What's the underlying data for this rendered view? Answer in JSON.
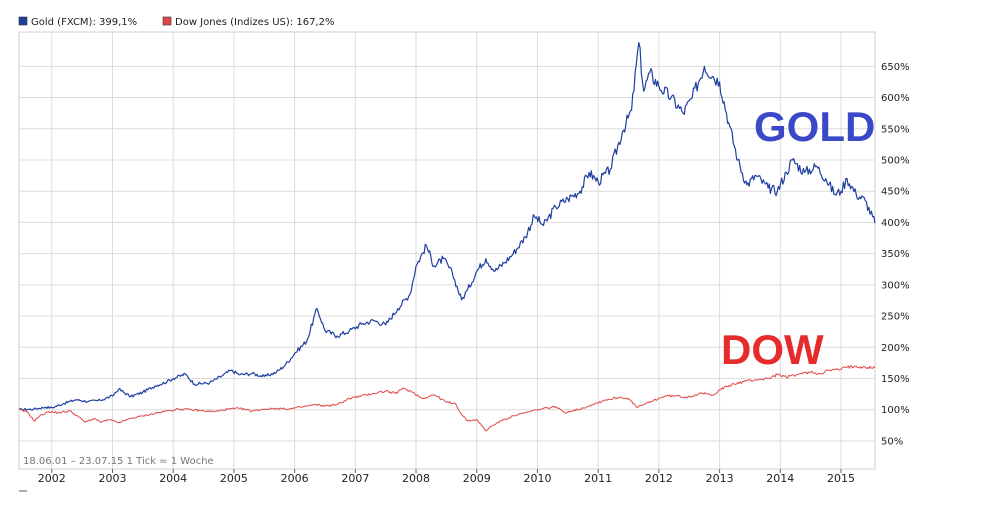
{
  "legend": [
    {
      "label": "Gold (FXCM): 399,1%",
      "color": "#1f3fa0"
    },
    {
      "label": "Dow Jones (Indizes US): 167,2%",
      "color": "#e04848"
    }
  ],
  "footnote": "18.06.01 – 23.07.15   1 Tick = 1 Woche",
  "annotations": [
    {
      "text": "GOLD",
      "color": "#3b48c8"
    },
    {
      "text": "DOW",
      "color": "#e52b2b"
    }
  ],
  "chart_data": {
    "type": "line",
    "title": "",
    "xlabel": "",
    "ylabel": "",
    "x_range": [
      2001.46,
      2015.56
    ],
    "ylim": [
      5,
      705
    ],
    "y_ticks": [
      50,
      100,
      150,
      200,
      250,
      300,
      350,
      400,
      450,
      500,
      550,
      600,
      650
    ],
    "y_tick_labels": [
      "50%",
      "100%",
      "150%",
      "200%",
      "250%",
      "300%",
      "350%",
      "400%",
      "450%",
      "500%",
      "550%",
      "600%",
      "650%"
    ],
    "x_ticks": [
      2002,
      2003,
      2004,
      2005,
      2006,
      2007,
      2008,
      2009,
      2010,
      2011,
      2012,
      2013,
      2014,
      2015
    ],
    "x_tick_labels": [
      "2002",
      "2003",
      "2004",
      "2005",
      "2006",
      "2007",
      "2008",
      "2009",
      "2010",
      "2011",
      "2012",
      "2013",
      "2014",
      "2015"
    ],
    "grid": true,
    "legend_position": "top-left",
    "series": [
      {
        "name": "Gold (FXCM): 399,1%",
        "color": "#1f3fa0",
        "points": [
          [
            2001.46,
            100
          ],
          [
            2001.7,
            101
          ],
          [
            2001.9,
            104
          ],
          [
            2002.0,
            103
          ],
          [
            2002.2,
            110
          ],
          [
            2002.4,
            116
          ],
          [
            2002.6,
            113
          ],
          [
            2002.8,
            115
          ],
          [
            2003.0,
            122
          ],
          [
            2003.1,
            133
          ],
          [
            2003.3,
            121
          ],
          [
            2003.5,
            128
          ],
          [
            2003.7,
            138
          ],
          [
            2003.9,
            145
          ],
          [
            2004.0,
            150
          ],
          [
            2004.2,
            157
          ],
          [
            2004.35,
            141
          ],
          [
            2004.6,
            143
          ],
          [
            2004.8,
            154
          ],
          [
            2004.95,
            163
          ],
          [
            2005.1,
            156
          ],
          [
            2005.3,
            158
          ],
          [
            2005.5,
            153
          ],
          [
            2005.7,
            160
          ],
          [
            2005.85,
            172
          ],
          [
            2006.0,
            190
          ],
          [
            2006.2,
            210
          ],
          [
            2006.37,
            262
          ],
          [
            2006.5,
            227
          ],
          [
            2006.7,
            218
          ],
          [
            2006.9,
            226
          ],
          [
            2007.1,
            237
          ],
          [
            2007.3,
            243
          ],
          [
            2007.5,
            236
          ],
          [
            2007.7,
            262
          ],
          [
            2007.9,
            285
          ],
          [
            2008.0,
            330
          ],
          [
            2008.17,
            363
          ],
          [
            2008.3,
            330
          ],
          [
            2008.45,
            342
          ],
          [
            2008.6,
            318
          ],
          [
            2008.75,
            276
          ],
          [
            2008.85,
            292
          ],
          [
            2009.0,
            322
          ],
          [
            2009.15,
            342
          ],
          [
            2009.3,
            322
          ],
          [
            2009.45,
            335
          ],
          [
            2009.6,
            350
          ],
          [
            2009.8,
            377
          ],
          [
            2009.95,
            410
          ],
          [
            2010.1,
            395
          ],
          [
            2010.3,
            425
          ],
          [
            2010.5,
            438
          ],
          [
            2010.7,
            450
          ],
          [
            2010.85,
            480
          ],
          [
            2011.0,
            465
          ],
          [
            2011.2,
            485
          ],
          [
            2011.4,
            545
          ],
          [
            2011.55,
            580
          ],
          [
            2011.67,
            688
          ],
          [
            2011.75,
            610
          ],
          [
            2011.85,
            640
          ],
          [
            2012.0,
            618
          ],
          [
            2012.2,
            600
          ],
          [
            2012.4,
            575
          ],
          [
            2012.55,
            600
          ],
          [
            2012.75,
            650
          ],
          [
            2012.9,
            633
          ],
          [
            2013.0,
            625
          ],
          [
            2013.15,
            560
          ],
          [
            2013.3,
            500
          ],
          [
            2013.45,
            460
          ],
          [
            2013.6,
            475
          ],
          [
            2013.8,
            455
          ],
          [
            2013.95,
            450
          ],
          [
            2014.1,
            480
          ],
          [
            2014.2,
            500
          ],
          [
            2014.4,
            480
          ],
          [
            2014.6,
            490
          ],
          [
            2014.75,
            470
          ],
          [
            2014.9,
            445
          ],
          [
            2015.0,
            450
          ],
          [
            2015.1,
            470
          ],
          [
            2015.25,
            445
          ],
          [
            2015.4,
            435
          ],
          [
            2015.56,
            399
          ]
        ]
      },
      {
        "name": "Dow Jones (Indizes US): 167,2%",
        "color": "#e04848",
        "points": [
          [
            2001.46,
            100
          ],
          [
            2001.6,
            96
          ],
          [
            2001.71,
            82
          ],
          [
            2001.8,
            90
          ],
          [
            2001.95,
            97
          ],
          [
            2002.1,
            95
          ],
          [
            2002.3,
            98
          ],
          [
            2002.45,
            88
          ],
          [
            2002.55,
            80
          ],
          [
            2002.7,
            86
          ],
          [
            2002.8,
            80
          ],
          [
            2002.95,
            84
          ],
          [
            2003.1,
            79
          ],
          [
            2003.3,
            86
          ],
          [
            2003.5,
            90
          ],
          [
            2003.7,
            94
          ],
          [
            2003.9,
            98
          ],
          [
            2004.1,
            101
          ],
          [
            2004.3,
            100
          ],
          [
            2004.5,
            98
          ],
          [
            2004.7,
            97
          ],
          [
            2004.9,
            101
          ],
          [
            2005.1,
            102
          ],
          [
            2005.3,
            98
          ],
          [
            2005.5,
            101
          ],
          [
            2005.7,
            102
          ],
          [
            2005.9,
            101
          ],
          [
            2006.1,
            104
          ],
          [
            2006.35,
            108
          ],
          [
            2006.5,
            106
          ],
          [
            2006.7,
            108
          ],
          [
            2006.9,
            118
          ],
          [
            2007.1,
            122
          ],
          [
            2007.3,
            126
          ],
          [
            2007.5,
            130
          ],
          [
            2007.65,
            126
          ],
          [
            2007.8,
            134
          ],
          [
            2007.95,
            128
          ],
          [
            2008.1,
            118
          ],
          [
            2008.3,
            124
          ],
          [
            2008.5,
            112
          ],
          [
            2008.65,
            110
          ],
          [
            2008.75,
            92
          ],
          [
            2008.85,
            82
          ],
          [
            2009.0,
            84
          ],
          [
            2009.15,
            66
          ],
          [
            2009.25,
            74
          ],
          [
            2009.4,
            82
          ],
          [
            2009.6,
            90
          ],
          [
            2009.8,
            95
          ],
          [
            2010.0,
            100
          ],
          [
            2010.3,
            105
          ],
          [
            2010.45,
            95
          ],
          [
            2010.55,
            98
          ],
          [
            2010.7,
            101
          ],
          [
            2010.9,
            108
          ],
          [
            2011.1,
            115
          ],
          [
            2011.35,
            120
          ],
          [
            2011.5,
            118
          ],
          [
            2011.63,
            104
          ],
          [
            2011.75,
            108
          ],
          [
            2011.9,
            114
          ],
          [
            2012.1,
            122
          ],
          [
            2012.3,
            122
          ],
          [
            2012.45,
            120
          ],
          [
            2012.7,
            126
          ],
          [
            2012.9,
            124
          ],
          [
            2013.0,
            132
          ],
          [
            2013.2,
            140
          ],
          [
            2013.4,
            145
          ],
          [
            2013.6,
            148
          ],
          [
            2013.8,
            150
          ],
          [
            2013.95,
            156
          ],
          [
            2014.1,
            152
          ],
          [
            2014.3,
            157
          ],
          [
            2014.5,
            160
          ],
          [
            2014.65,
            158
          ],
          [
            2014.8,
            163
          ],
          [
            2014.95,
            164
          ],
          [
            2015.1,
            168
          ],
          [
            2015.25,
            170
          ],
          [
            2015.4,
            168
          ],
          [
            2015.56,
            167
          ]
        ]
      }
    ]
  }
}
